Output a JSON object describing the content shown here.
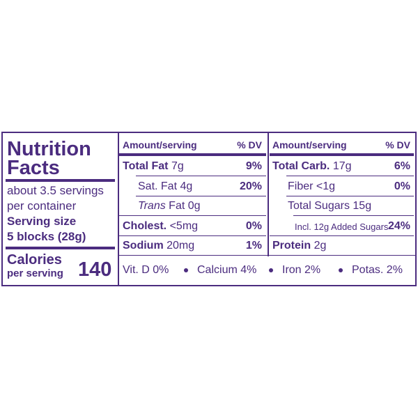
{
  "left": {
    "title": [
      "Nutrition",
      "Facts"
    ],
    "servings": [
      "about 3.5 servings",
      "per container"
    ],
    "serving_size_label": "Serving size",
    "serving_size": "5 blocks (28g)",
    "calories_label": [
      "Calories",
      "per serving"
    ],
    "calories": 140
  },
  "middle": {
    "header": {
      "amount": "Amount/serving",
      "dv": "% DV"
    },
    "rows": [
      {
        "name": "Total Fat",
        "amount": "7g",
        "dv": "9%"
      },
      {
        "name": "Sat. Fat",
        "amount": "4g",
        "dv": "20%"
      },
      {
        "name": "Trans",
        "amount": "Fat 0g"
      },
      {
        "name": "Cholest.",
        "amount": "<5mg",
        "dv": "0%"
      },
      {
        "name": "Sodium",
        "amount": "20mg",
        "dv": "1%"
      }
    ]
  },
  "right": {
    "header": {
      "amount": "Amount/serving",
      "dv": "% DV"
    },
    "rows": [
      {
        "name": "Total Carb.",
        "amount": "17g",
        "dv": "6%"
      },
      {
        "name": "Fiber",
        "amount": "<1g",
        "dv": "0%"
      },
      {
        "name": "Total Sugars",
        "amount": "15g"
      },
      {
        "name": "Incl. 12g Added Sugars",
        "dv": "24%"
      },
      {
        "name": "Protein",
        "amount": "2g"
      }
    ]
  },
  "footer": [
    "Vit. D 0%",
    "Calcium 4%",
    "Iron 2%",
    "Potas. 2%"
  ]
}
